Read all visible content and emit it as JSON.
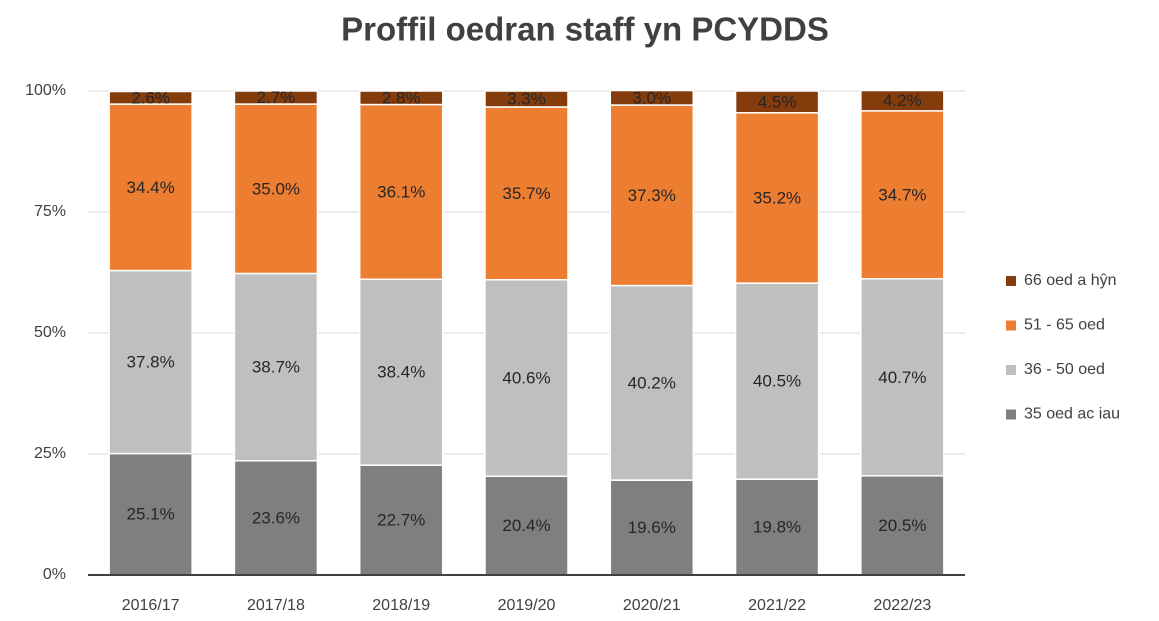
{
  "chart_data": {
    "type": "stacked_bar",
    "title": "Proffil oedran staff yn PCYDDS",
    "categories": [
      "2016/17",
      "2017/18",
      "2018/19",
      "2019/20",
      "2020/21",
      "2021/22",
      "2022/23"
    ],
    "series": [
      {
        "name": "35 oed ac iau",
        "color": "#7f7f7f",
        "values": [
          25.1,
          23.6,
          22.7,
          20.4,
          19.6,
          19.8,
          20.5
        ],
        "value_labels": [
          "25.1%",
          "23.6%",
          "22.7%",
          "20.4%",
          "19.6%",
          "19.8%",
          "20.5%"
        ]
      },
      {
        "name": "36 - 50 oed",
        "color": "#bfbfbf",
        "values": [
          37.8,
          38.7,
          38.4,
          40.6,
          40.2,
          40.5,
          40.7
        ],
        "value_labels": [
          "37.8%",
          "38.7%",
          "38.4%",
          "40.6%",
          "40.2%",
          "40.5%",
          "40.7%"
        ]
      },
      {
        "name": "51 - 65 oed",
        "color": "#ed7d31",
        "values": [
          34.4,
          35.0,
          36.1,
          35.7,
          37.3,
          35.2,
          34.7
        ],
        "value_labels": [
          "34.4%",
          "35.0%",
          "36.1%",
          "35.7%",
          "37.3%",
          "35.2%",
          "34.7%"
        ]
      },
      {
        "name": "66 oed a hŷn",
        "color": "#843c0c",
        "values": [
          2.6,
          2.7,
          2.8,
          3.3,
          3.0,
          4.5,
          4.2
        ],
        "value_labels": [
          "2.6%",
          "2.7%",
          "2.8%",
          "3.3%",
          "3.0%",
          "4.5%",
          "4.2%"
        ]
      }
    ],
    "ylim": [
      0,
      100
    ],
    "yticks": [
      {
        "value": 0,
        "label": "0%"
      },
      {
        "value": 25,
        "label": "25%"
      },
      {
        "value": 50,
        "label": "50%"
      },
      {
        "value": 75,
        "label": "75%"
      },
      {
        "value": 100,
        "label": "100%"
      }
    ],
    "grid": true,
    "legend": "right"
  }
}
